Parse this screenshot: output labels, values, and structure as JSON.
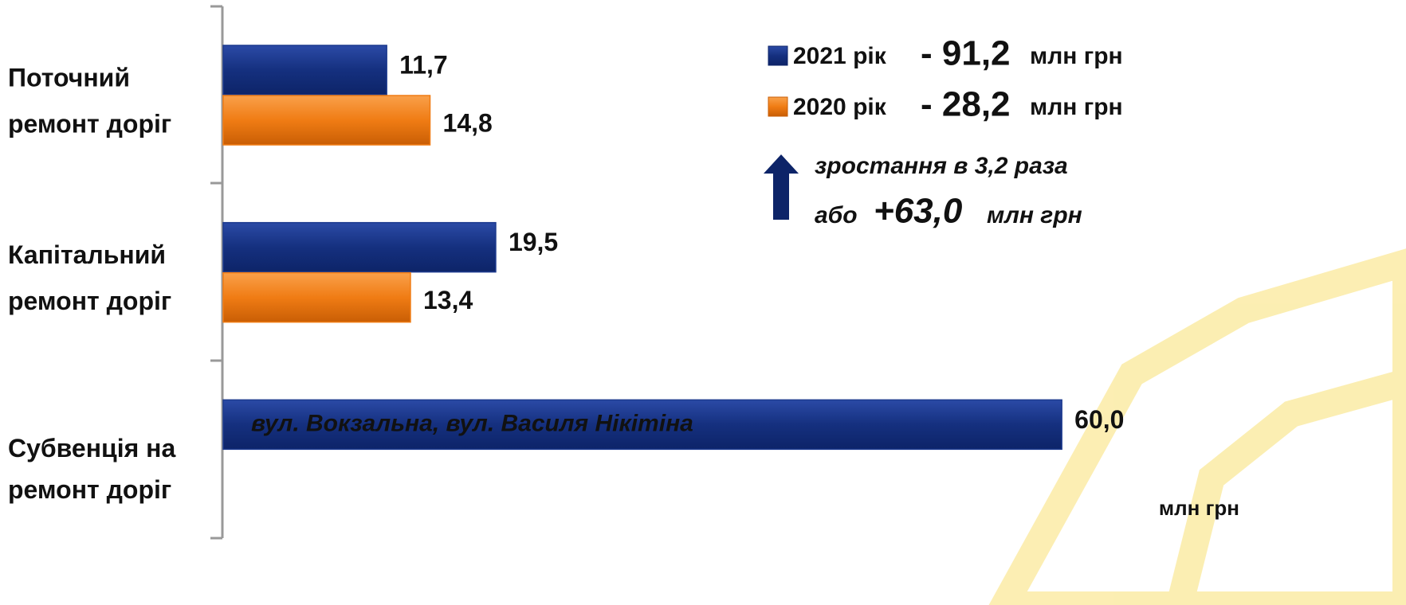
{
  "chart_data": {
    "type": "bar",
    "orientation": "horizontal",
    "categories": [
      [
        "Поточний",
        "ремонт доріг"
      ],
      [
        "Капітальний",
        "ремонт доріг"
      ],
      [
        "Субвенція на",
        "ремонт доріг"
      ]
    ],
    "series": [
      {
        "name": "2021 рік",
        "color": "#1c3a8e",
        "values": [
          11.7,
          19.5,
          60.0
        ],
        "value_labels": [
          "11,7",
          "19,5",
          "60,0"
        ],
        "total_label": "- 91,2"
      },
      {
        "name": "2020 рік",
        "color": "#f07c14",
        "values": [
          14.8,
          13.4,
          null
        ],
        "value_labels": [
          "14,8",
          "13,4",
          null
        ],
        "total_label": "- 28,2"
      }
    ],
    "unit": "млн грн",
    "xlim": [
      0,
      84
    ],
    "bar_annotation": "вул. Вокзальна, вул. Василя Нікітіна",
    "growth": {
      "line1": "зростання в 3,2 раза",
      "prefix": "або",
      "value": "+63,0"
    }
  }
}
